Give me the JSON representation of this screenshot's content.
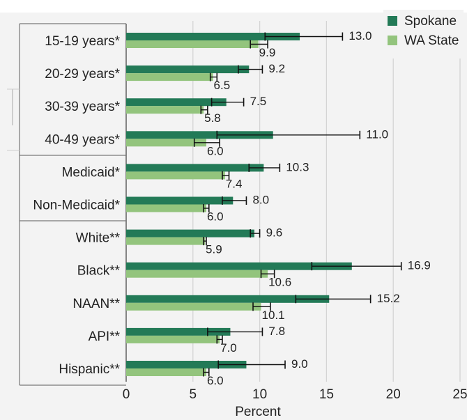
{
  "chart_data": {
    "type": "bar",
    "orientation": "horizontal",
    "categories": [
      "15-19 years*",
      "20-29 years*",
      "30-39 years*",
      "40-49 years*",
      "Medicaid*",
      "Non-Medicaid*",
      "White**",
      "Black**",
      "NAAN**",
      "API**",
      "Hispanic**"
    ],
    "groups": [
      [
        0,
        1,
        2,
        3
      ],
      [
        4,
        5
      ],
      [
        6,
        7,
        8,
        9,
        10
      ]
    ],
    "series": [
      {
        "name": "Spokane",
        "color": "#237a57",
        "values": [
          13.0,
          9.2,
          7.5,
          11.0,
          10.3,
          8.0,
          9.6,
          16.9,
          15.2,
          7.8,
          9.0
        ],
        "labels": [
          "13.0",
          "9.2",
          "7.5",
          "11.0",
          "10.3",
          "8.0",
          "9.6",
          "16.9",
          "15.2",
          "7.8",
          "9.0"
        ],
        "ci": [
          [
            10.4,
            16.2
          ],
          [
            8.4,
            10.2
          ],
          [
            6.4,
            8.8
          ],
          [
            6.8,
            17.5
          ],
          [
            9.2,
            11.5
          ],
          [
            7.2,
            9.0
          ],
          [
            9.3,
            10.0
          ],
          [
            13.9,
            20.6
          ],
          [
            12.7,
            18.3
          ],
          [
            6.1,
            10.2
          ],
          [
            6.9,
            11.9
          ]
        ]
      },
      {
        "name": "WA State",
        "color": "#93c47d",
        "values": [
          9.9,
          6.5,
          5.8,
          6.0,
          7.4,
          6.0,
          5.9,
          10.6,
          10.1,
          7.0,
          6.0
        ],
        "labels": [
          "9.9",
          "6.5",
          "5.8",
          "6.0",
          "7.4",
          "6.0",
          "5.9",
          "10.6",
          "10.1",
          "7.0",
          "6.0"
        ],
        "ci": [
          [
            9.3,
            10.6
          ],
          [
            6.3,
            6.8
          ],
          [
            5.6,
            6.1
          ],
          [
            5.1,
            7.0
          ],
          [
            7.2,
            7.7
          ],
          [
            5.8,
            6.2
          ],
          [
            5.8,
            6.0
          ],
          [
            10.1,
            11.1
          ],
          [
            9.5,
            10.8
          ],
          [
            6.8,
            7.2
          ],
          [
            5.8,
            6.2
          ]
        ]
      }
    ],
    "xlabel": "Percent",
    "xlim": [
      0,
      25
    ],
    "xticks": [
      "0",
      "5",
      "10",
      "15",
      "20",
      "25"
    ],
    "grid": "vertical",
    "legend_position": "top-right",
    "background": "#f3f3f3"
  }
}
